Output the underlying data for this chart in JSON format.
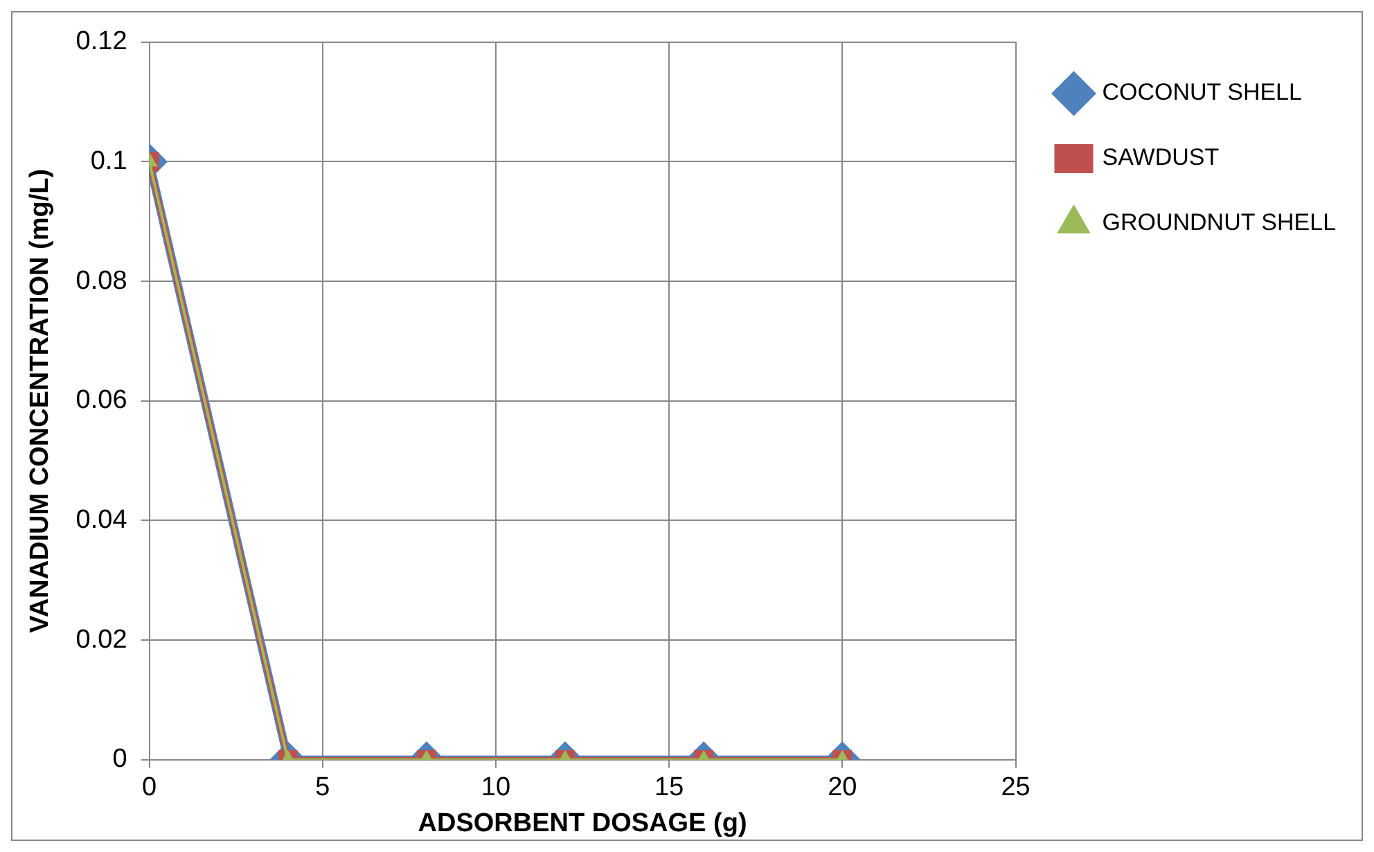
{
  "chart_data": {
    "type": "line",
    "xlabel": "ADSORBENT DOSAGE (g)",
    "ylabel": "VANADIUM CONCENTRATION (mg/L)",
    "x": [
      0,
      4,
      8,
      12,
      16,
      20
    ],
    "series": [
      {
        "name": "COCONUT SHELL",
        "color": "#4f81bd",
        "marker": "diamond",
        "values": [
          0.1,
          0,
          0,
          0,
          0,
          0
        ]
      },
      {
        "name": "SAWDUST",
        "color": "#c0504d",
        "marker": "square",
        "values": [
          0.1,
          0,
          0,
          0,
          0,
          0
        ]
      },
      {
        "name": "GROUNDNUT SHELL",
        "color": "#9bbb59",
        "marker": "triangle",
        "values": [
          0.1,
          0,
          0,
          0,
          0,
          0
        ]
      }
    ],
    "xlim": [
      0,
      25
    ],
    "xticks": [
      0,
      5,
      10,
      15,
      20,
      25
    ],
    "ylim": [
      0,
      0.12
    ],
    "yticks": [
      0,
      0.02,
      0.04,
      0.06,
      0.08,
      0.1,
      0.12
    ],
    "grid": true,
    "legend": "right",
    "line_style": "solid"
  }
}
